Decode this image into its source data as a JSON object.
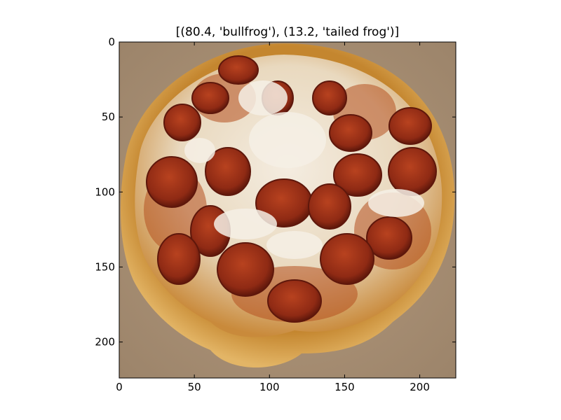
{
  "chart_data": {
    "type": "image",
    "title": "[(80.4, 'bullfrog'), (13.2, 'tailed frog')]",
    "image_subject": "pepperoni pizza photo",
    "xlim": [
      0,
      224
    ],
    "ylim": [
      224,
      0
    ],
    "x_ticks": [
      0,
      50,
      100,
      150,
      200
    ],
    "y_ticks": [
      0,
      50,
      100,
      150,
      200
    ],
    "x_tick_labels": [
      "0",
      "50",
      "100",
      "150",
      "200"
    ],
    "y_tick_labels": [
      "0",
      "50",
      "100",
      "150",
      "200"
    ],
    "grid": false
  },
  "colors": {
    "board": "#a88f73",
    "crust": "#d9a24a",
    "crust_edge": "#b8792c",
    "cheese": "#efe6d6",
    "sauce": "#b5501f",
    "pepperoni": "#9a2d18",
    "pepperoni_dark": "#6d1c0e"
  }
}
